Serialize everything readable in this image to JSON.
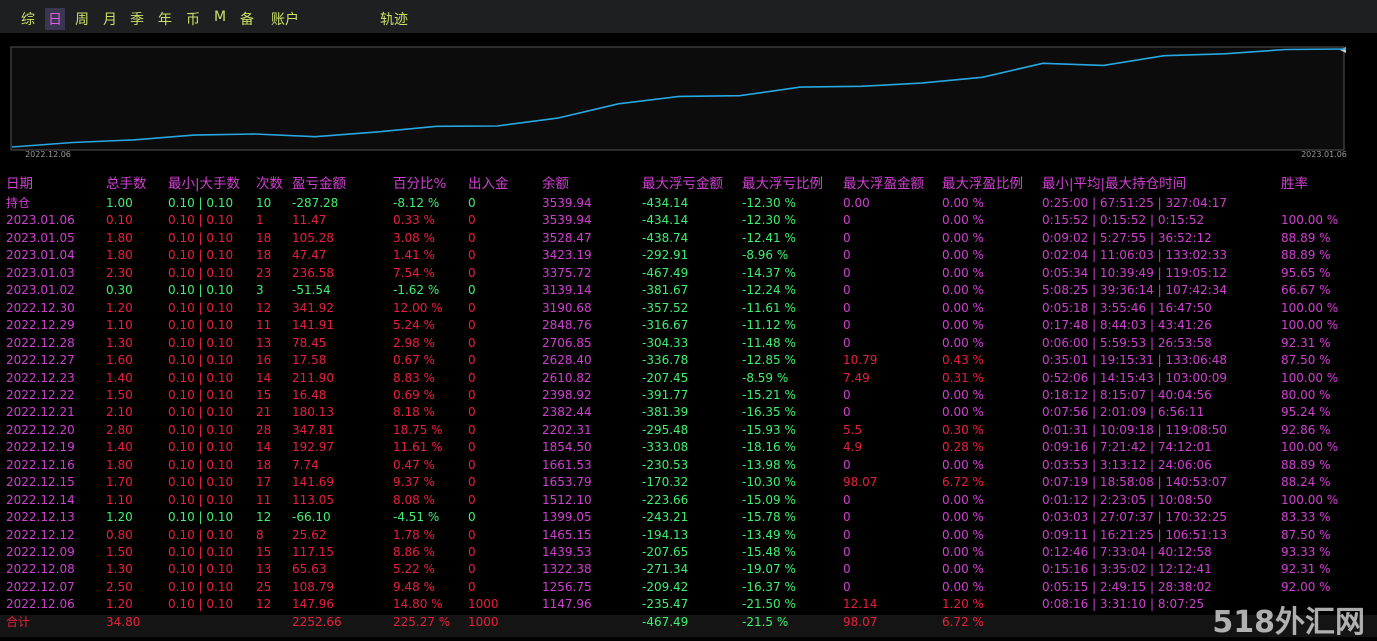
{
  "tabs": [
    "综",
    "日",
    "周",
    "月",
    "季",
    "年",
    "币",
    "M",
    "备",
    "账户",
    "轨迹"
  ],
  "active_tab": 1,
  "curve": {
    "start_label": "2022.12.06",
    "end_label": "2023.01.06",
    "color": "#29a8e0"
  },
  "table": {
    "headers": [
      "日期",
      "总手数",
      "最小|大手数",
      "次数",
      "盈亏金额",
      "百分比%",
      "出入金",
      "余额",
      "最大浮亏金额",
      "最大浮亏比例",
      "最大浮盈金额",
      "最大浮盈比例",
      "最小|平均|最大持仓时间",
      "胜率"
    ],
    "rows": [
      [
        "持仓",
        "1.00",
        "0.10 | 0.10",
        "10",
        "-287.28",
        "-8.12 %",
        "0",
        "3539.94",
        "-434.14",
        "-12.30 %",
        "0.00",
        "0.00 %",
        "0:25:00 | 67:51:25 | 327:04:17",
        null
      ],
      [
        "2023.01.06",
        "0.10",
        "0.10 | 0.10",
        "1",
        "11.47",
        "0.33 %",
        "0",
        "3539.94",
        "-434.14",
        "-12.30 %",
        "0",
        "0.00 %",
        "0:15:52 | 0:15:52 | 0:15:52",
        "100.00 %"
      ],
      [
        "2023.01.05",
        "1.80",
        "0.10 | 0.10",
        "18",
        "105.28",
        "3.08 %",
        "0",
        "3528.47",
        "-438.74",
        "-12.41 %",
        "0",
        "0.00 %",
        "0:09:02 | 5:27:55 | 36:52:12",
        "88.89 %"
      ],
      [
        "2023.01.04",
        "1.80",
        "0.10 | 0.10",
        "18",
        "47.47",
        "1.41 %",
        "0",
        "3423.19",
        "-292.91",
        "-8.96 %",
        "0",
        "0.00 %",
        "0:02:04 | 11:06:03 | 133:02:33",
        "88.89 %"
      ],
      [
        "2023.01.03",
        "2.30",
        "0.10 | 0.10",
        "23",
        "236.58",
        "7.54 %",
        "0",
        "3375.72",
        "-467.49",
        "-14.37 %",
        "0",
        "0.00 %",
        "0:05:34 | 10:39:49 | 119:05:12",
        "95.65 %"
      ],
      [
        "2023.01.02",
        "0.30",
        "0.10 | 0.10",
        "3",
        "-51.54",
        "-1.62 %",
        "0",
        "3139.14",
        "-381.67",
        "-12.24 %",
        "0",
        "0.00 %",
        "5:08:25 | 39:36:14 | 107:42:34",
        "66.67 %"
      ],
      [
        "2022.12.30",
        "1.20",
        "0.10 | 0.10",
        "12",
        "341.92",
        "12.00 %",
        "0",
        "3190.68",
        "-357.52",
        "-11.61 %",
        "0",
        "0.00 %",
        "0:05:18 | 3:55:46 | 16:47:50",
        "100.00 %"
      ],
      [
        "2022.12.29",
        "1.10",
        "0.10 | 0.10",
        "11",
        "141.91",
        "5.24 %",
        "0",
        "2848.76",
        "-316.67",
        "-11.12 %",
        "0",
        "0.00 %",
        "0:17:48 | 8:44:03 | 43:41:26",
        "100.00 %"
      ],
      [
        "2022.12.28",
        "1.30",
        "0.10 | 0.10",
        "13",
        "78.45",
        "2.98 %",
        "0",
        "2706.85",
        "-304.33",
        "-11.48 %",
        "0",
        "0.00 %",
        "0:06:00 | 5:59:53 | 26:53:58",
        "92.31 %"
      ],
      [
        "2022.12.27",
        "1.60",
        "0.10 | 0.10",
        "16",
        "17.58",
        "0.67 %",
        "0",
        "2628.40",
        "-336.78",
        "-12.85 %",
        "10.79",
        "0.43 %",
        "0:35:01 | 19:15:31 | 133:06:48",
        "87.50 %"
      ],
      [
        "2022.12.23",
        "1.40",
        "0.10 | 0.10",
        "14",
        "211.90",
        "8.83 %",
        "0",
        "2610.82",
        "-207.45",
        "-8.59 %",
        "7.49",
        "0.31 %",
        "0:52:06 | 14:15:43 | 103:00:09",
        "100.00 %"
      ],
      [
        "2022.12.22",
        "1.50",
        "0.10 | 0.10",
        "15",
        "16.48",
        "0.69 %",
        "0",
        "2398.92",
        "-391.77",
        "-15.21 %",
        "0",
        "0.00 %",
        "0:18:12 | 8:15:07 | 40:04:56",
        "80.00 %"
      ],
      [
        "2022.12.21",
        "2.10",
        "0.10 | 0.10",
        "21",
        "180.13",
        "8.18 %",
        "0",
        "2382.44",
        "-381.39",
        "-16.35 %",
        "0",
        "0.00 %",
        "0:07:56 | 2:01:09 | 6:56:11",
        "95.24 %"
      ],
      [
        "2022.12.20",
        "2.80",
        "0.10 | 0.10",
        "28",
        "347.81",
        "18.75 %",
        "0",
        "2202.31",
        "-295.48",
        "-15.93 %",
        "5.5",
        "0.30 %",
        "0:01:31 | 10:09:18 | 119:08:50",
        "92.86 %"
      ],
      [
        "2022.12.19",
        "1.40",
        "0.10 | 0.10",
        "14",
        "192.97",
        "11.61 %",
        "0",
        "1854.50",
        "-333.08",
        "-18.16 %",
        "4.9",
        "0.28 %",
        "0:09:16 | 7:21:42 | 74:12:01",
        "100.00 %"
      ],
      [
        "2022.12.16",
        "1.80",
        "0.10 | 0.10",
        "18",
        "7.74",
        "0.47 %",
        "0",
        "1661.53",
        "-230.53",
        "-13.98 %",
        "0",
        "0.00 %",
        "0:03:53 | 3:13:12 | 24:06:06",
        "88.89 %"
      ],
      [
        "2022.12.15",
        "1.70",
        "0.10 | 0.10",
        "17",
        "141.69",
        "9.37 %",
        "0",
        "1653.79",
        "-170.32",
        "-10.30 %",
        "98.07",
        "6.72 %",
        "0:07:19 | 18:58:08 | 140:53:07",
        "88.24 %"
      ],
      [
        "2022.12.14",
        "1.10",
        "0.10 | 0.10",
        "11",
        "113.05",
        "8.08 %",
        "0",
        "1512.10",
        "-223.66",
        "-15.09 %",
        "0",
        "0.00 %",
        "0:01:12 | 2:23:05 | 10:08:50",
        "100.00 %"
      ],
      [
        "2022.12.13",
        "1.20",
        "0.10 | 0.10",
        "12",
        "-66.10",
        "-4.51 %",
        "0",
        "1399.05",
        "-243.21",
        "-15.78 %",
        "0",
        "0.00 %",
        "0:03:03 | 27:07:37 | 170:32:25",
        "83.33 %"
      ],
      [
        "2022.12.12",
        "0.80",
        "0.10 | 0.10",
        "8",
        "25.62",
        "1.78 %",
        "0",
        "1465.15",
        "-194.13",
        "-13.49 %",
        "0",
        "0.00 %",
        "0:09:11 | 16:21:25 | 106:51:13",
        "87.50 %"
      ],
      [
        "2022.12.09",
        "1.50",
        "0.10 | 0.10",
        "15",
        "117.15",
        "8.86 %",
        "0",
        "1439.53",
        "-207.65",
        "-15.48 %",
        "0",
        "0.00 %",
        "0:12:46 | 7:33:04 | 40:12:58",
        "93.33 %"
      ],
      [
        "2022.12.08",
        "1.30",
        "0.10 | 0.10",
        "13",
        "65.63",
        "5.22 %",
        "0",
        "1322.38",
        "-271.34",
        "-19.07 %",
        "0",
        "0.00 %",
        "0:15:16 | 3:35:02 | 12:12:41",
        "92.31 %"
      ],
      [
        "2022.12.07",
        "2.50",
        "0.10 | 0.10",
        "25",
        "108.79",
        "9.48 %",
        "0",
        "1256.75",
        "-209.42",
        "-16.37 %",
        "0",
        "0.00 %",
        "0:05:15 | 2:49:15 | 28:38:02",
        "92.00 %"
      ],
      [
        "2022.12.06",
        "1.20",
        "0.10 | 0.10",
        "12",
        "147.96",
        "14.80 %",
        "1000",
        "1147.96",
        "-235.47",
        "-21.50 %",
        "12.14",
        "1.20 %",
        "0:08:16 | 3:31:10 | 8:07:25",
        null
      ],
      [
        "合计",
        "34.80",
        null,
        null,
        "2252.66",
        "225.27 %",
        "1000",
        null,
        "-467.49",
        "-21.5 %",
        "98.07",
        "6.72 %",
        null,
        null
      ]
    ]
  },
  "watermark": "518外汇网"
}
